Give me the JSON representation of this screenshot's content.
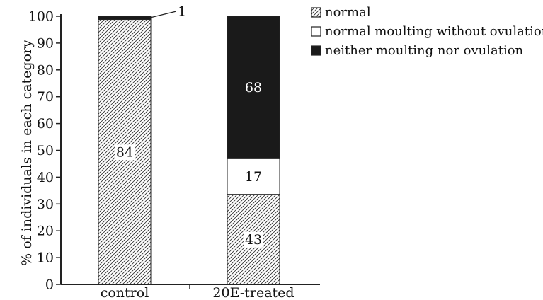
{
  "chart_data": {
    "type": "bar",
    "stacked": true,
    "categories": [
      "control",
      "20E-treated"
    ],
    "ylabel": "% of individuals in each category",
    "ylim": [
      0,
      100
    ],
    "yticks": [
      0,
      10,
      20,
      30,
      40,
      50,
      60,
      70,
      80,
      90,
      100
    ],
    "legend_position": "top-right",
    "series": [
      {
        "name": "normal",
        "fill": "hatched",
        "color": "#ffffff",
        "percent": [
          98.8,
          33.6
        ],
        "data_labels": [
          "84",
          "43"
        ]
      },
      {
        "name": "normal moulting without ovulation",
        "fill": "solid",
        "color": "#ffffff",
        "percent": [
          0,
          13.3
        ],
        "data_labels": [
          "",
          "17"
        ]
      },
      {
        "name": "neither moulting nor ovulation",
        "fill": "solid",
        "color": "#1a1a1a",
        "percent": [
          1.2,
          53.1
        ],
        "data_labels": [
          "1",
          "68"
        ]
      }
    ]
  }
}
